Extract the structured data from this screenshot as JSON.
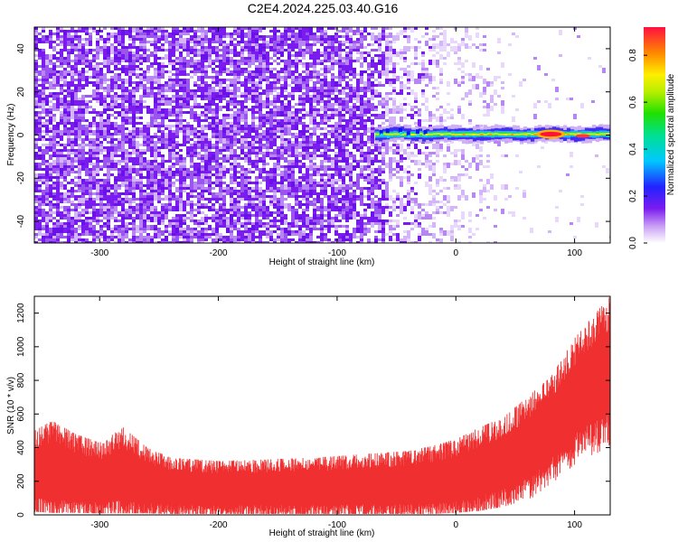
{
  "figure": {
    "title": "C2E4.2024.225.03.40.G16"
  },
  "chart_data": [
    {
      "type": "heatmap",
      "name": "spectrogram",
      "xlabel": "Height of straight line (km)",
      "ylabel": "Frequency (Hz)",
      "xlim": [
        -355,
        130
      ],
      "ylim": [
        -50,
        50
      ],
      "xticks": [
        -300,
        -200,
        -100,
        0,
        100
      ],
      "yticks": [
        -40,
        -20,
        0,
        20,
        40
      ],
      "colorbar": {
        "label": "Normalized spectral amplitude",
        "range": [
          0,
          0.92
        ],
        "ticks": [
          "0.0",
          "0.2",
          "0.4",
          "0.6",
          "0.8"
        ],
        "colormap": "rainbow"
      },
      "features": {
        "noise_region_x": [
          -355,
          -40
        ],
        "signal_band_frequency": 0,
        "signal_start_x": -68,
        "peak_amplitude_x": 80
      },
      "grid": false
    },
    {
      "type": "area",
      "name": "snr",
      "xlabel": "Height of straight line (km)",
      "ylabel": "SNR (10 * v/v)",
      "xlim": [
        -355,
        130
      ],
      "ylim": [
        0,
        1300
      ],
      "xticks": [
        -300,
        -200,
        -100,
        0,
        100
      ],
      "yticks": [
        0,
        200,
        400,
        600,
        800,
        1000,
        1200
      ],
      "series_color": "#f03030",
      "envelope": {
        "x": [
          -355,
          -340,
          -320,
          -300,
          -280,
          -260,
          -240,
          -200,
          -160,
          -120,
          -80,
          -40,
          -20,
          0,
          20,
          40,
          60,
          80,
          100,
          115,
          130
        ],
        "upper": [
          500,
          560,
          480,
          430,
          520,
          400,
          340,
          320,
          330,
          340,
          360,
          380,
          410,
          450,
          520,
          580,
          700,
          820,
          1050,
          1180,
          1300
        ],
        "lower": [
          30,
          20,
          20,
          15,
          15,
          15,
          10,
          10,
          10,
          10,
          10,
          10,
          10,
          20,
          40,
          80,
          150,
          250,
          380,
          450,
          500
        ]
      },
      "grid": false
    }
  ]
}
